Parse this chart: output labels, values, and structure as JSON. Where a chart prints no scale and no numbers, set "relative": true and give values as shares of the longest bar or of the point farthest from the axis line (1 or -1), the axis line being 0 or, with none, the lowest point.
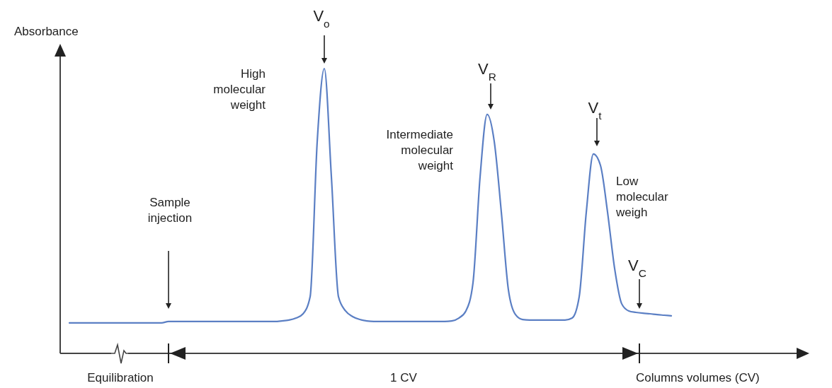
{
  "chart_data": {
    "type": "line",
    "relative": true,
    "ylabel": "Absorbance",
    "xlabel": "Columns volumes (CV)",
    "marker": "none",
    "line_style": "solid",
    "categories": [
      null,
      null,
      null,
      null,
      null,
      null,
      null,
      null,
      null,
      null,
      null,
      null,
      null,
      null,
      null,
      null,
      null,
      null,
      null,
      null,
      null,
      null,
      null,
      null,
      null,
      null,
      null,
      null,
      null,
      null,
      null,
      null,
      null,
      null,
      null,
      null,
      null,
      null,
      null,
      null,
      null,
      null,
      null,
      null,
      null,
      null,
      null,
      null,
      null,
      null,
      null,
      null,
      null,
      null,
      null,
      null,
      null,
      null,
      null,
      null,
      null,
      null,
      null,
      null,
      null,
      null,
      null,
      null,
      null,
      null,
      null,
      null,
      null,
      null,
      null,
      null,
      null,
      null,
      null,
      null,
      null,
      null,
      null,
      null,
      null,
      null
    ],
    "series": [
      {
        "color": "#5b7fc4",
        "values": [
          0.107,
          0.107,
          0.107,
          0.107,
          0.107,
          0.107,
          0.107,
          0.107,
          0.107,
          0.107,
          0.107,
          0.107,
          0.107,
          0.107,
          0.112,
          0.112,
          0.112,
          0.112,
          0.112,
          0.112,
          0.112,
          0.112,
          0.112,
          0.112,
          0.112,
          0.112,
          0.112,
          0.112,
          0.112,
          0.112,
          0.114,
          0.117,
          0.124,
          0.139,
          0.199,
          0.744,
          1,
          0.62,
          0.199,
          0.149,
          0.129,
          0.119,
          0.114,
          0.112,
          0.112,
          0.112,
          0.112,
          0.112,
          0.112,
          0.112,
          0.112,
          0.112,
          0.112,
          0.112,
          0.114,
          0.124,
          0.149,
          0.248,
          0.62,
          0.839,
          0.744,
          0.496,
          0.223,
          0.136,
          0.119,
          0.117,
          0.117,
          0.117,
          0.117,
          0.117,
          0.117,
          0.124,
          0.199,
          0.496,
          0.7,
          0.66,
          0.496,
          0.298,
          0.174,
          0.149,
          0.144,
          0.141,
          0.139,
          0.136,
          0.134,
          0.132
        ]
      }
    ],
    "annotations": [
      "Sample injection",
      "High molecular weight",
      "Intermediate molecular weight",
      "Low molecular weigh",
      "V$_{o}$",
      "V$_{R}$",
      "V$_{t}$",
      "V$_{C}$",
      "Equilibration",
      "1 CV"
    ]
  }
}
